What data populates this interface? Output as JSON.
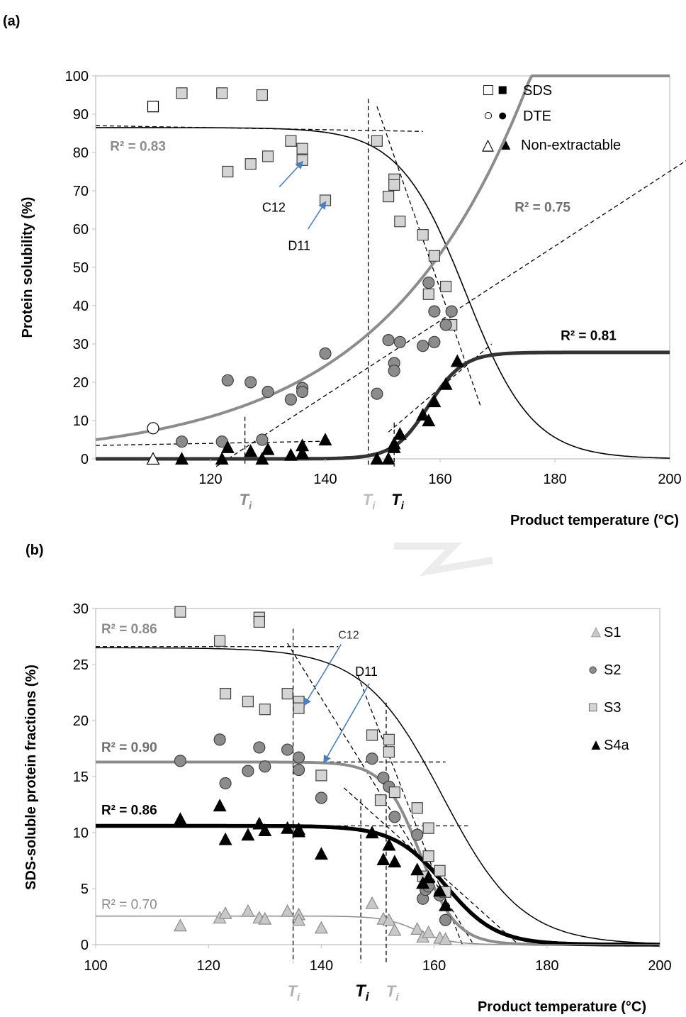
{
  "chart_data": [
    {
      "panel_label": "(a)",
      "type": "scatter",
      "xlabel": "Product temperature (°C)",
      "ylabel": "Protein solubility (%)",
      "xlim": [
        100,
        200
      ],
      "ylim": [
        0,
        100
      ],
      "x_ticks": [
        "120",
        "140",
        "160",
        "180",
        "200"
      ],
      "y_ticks": [
        "0",
        "10",
        "20",
        "30",
        "40",
        "50",
        "60",
        "70",
        "80",
        "90",
        "100"
      ],
      "legend": {
        "placement": "top-right",
        "entries": [
          {
            "symbols": "□ ■",
            "label": "SDS",
            "shape": "square"
          },
          {
            "symbols": "○ ●",
            "label": "DTE",
            "shape": "circle"
          },
          {
            "symbols": "△ ▲",
            "label": "Non-extractable",
            "shape": "triangle"
          }
        ]
      },
      "series": [
        {
          "key": "SDS",
          "shape": "square",
          "fill": "#d4d4d4",
          "open_points": [
            [
              110,
              92
            ]
          ],
          "points": [
            [
              115,
              95.5
            ],
            [
              122,
              95.5
            ],
            [
              129,
              95
            ],
            [
              123,
              75
            ],
            [
              127,
              77
            ],
            [
              130,
              79
            ],
            [
              134,
              83
            ],
            [
              136,
              81
            ],
            [
              136,
              78
            ],
            [
              140,
              67.5
            ],
            [
              149,
              83
            ],
            [
              151,
              68.5
            ],
            [
              152,
              73
            ],
            [
              152,
              71.5
            ],
            [
              153,
              62
            ],
            [
              157,
              58.5
            ],
            [
              158,
              43
            ],
            [
              159,
              53
            ],
            [
              161,
              45
            ],
            [
              162,
              35
            ]
          ]
        },
        {
          "key": "DTE",
          "shape": "circle",
          "fill": "#8c8c8c",
          "open_points": [
            [
              110,
              8
            ]
          ],
          "points": [
            [
              115,
              4.5
            ],
            [
              122,
              4.5
            ],
            [
              123,
              20.5
            ],
            [
              127,
              20
            ],
            [
              129,
              5
            ],
            [
              130,
              17.5
            ],
            [
              134,
              15.5
            ],
            [
              136,
              18.5
            ],
            [
              136,
              17.5
            ],
            [
              140,
              27.5
            ],
            [
              149,
              17
            ],
            [
              151,
              31
            ],
            [
              152,
              25
            ],
            [
              152,
              23
            ],
            [
              153,
              30.5
            ],
            [
              157,
              29.5
            ],
            [
              158,
              46
            ],
            [
              159,
              30.5
            ],
            [
              159,
              38.5
            ],
            [
              161,
              35
            ],
            [
              162,
              38.5
            ]
          ]
        },
        {
          "key": "Non-extractable",
          "shape": "triangle",
          "fill": "#000000",
          "open_points": [
            [
              110,
              0
            ]
          ],
          "points": [
            [
              115,
              0
            ],
            [
              122,
              0
            ],
            [
              123,
              3
            ],
            [
              127,
              2
            ],
            [
              129,
              0
            ],
            [
              130,
              2.5
            ],
            [
              134,
              1
            ],
            [
              136,
              3.5
            ],
            [
              136,
              1.5
            ],
            [
              140,
              5
            ],
            [
              149,
              0
            ],
            [
              151,
              0
            ],
            [
              152,
              3
            ],
            [
              152,
              4
            ],
            [
              153,
              6.5
            ],
            [
              157,
              11.5
            ],
            [
              158,
              10
            ],
            [
              159,
              15
            ],
            [
              161,
              19.5
            ],
            [
              163,
              25.5
            ]
          ]
        }
      ],
      "fits": [
        {
          "model": "sigmoid",
          "top": 86.5,
          "bottom": 0,
          "mid": 164.5,
          "slope": 5.8,
          "color": "#000000",
          "width": 1.6
        },
        {
          "model": "exponential",
          "a": 5.0,
          "b": 0.0395,
          "x0": 100,
          "color": "#8c8c8c",
          "width": 4
        },
        {
          "model": "sigmoid",
          "top": 0,
          "bottom": 27.8,
          "mid": 158,
          "slope": 3,
          "color": "#333333",
          "width": 5
        }
      ],
      "guides": [
        {
          "x1": 100,
          "y1": 87,
          "x2": 157,
          "y2": 85.5
        },
        {
          "x1": 100,
          "y1": 3.5,
          "x2": 140,
          "y2": 4.6
        },
        {
          "x1": 121,
          "y1": -2,
          "x2": 203,
          "y2": 78
        },
        {
          "x1": 149,
          "y1": 92,
          "x2": 167,
          "y2": 14
        },
        {
          "x1": 151,
          "y1": 7,
          "x2": 169,
          "y2": 30
        },
        {
          "x1": 126,
          "y1": 11,
          "x2": 126,
          "y2": -2
        },
        {
          "x1": 147.5,
          "y1": 94,
          "x2": 147.5,
          "y2": -2
        },
        {
          "x1": 152,
          "y1": 9.5,
          "x2": 152,
          "y2": -2
        }
      ],
      "annotations": [
        {
          "text": "R² = 0.83",
          "x": 102.5,
          "y": 80.5,
          "color": "#8c8c8c",
          "weight": "bold",
          "size": 19
        },
        {
          "text": "R² = 0.75",
          "x": 173,
          "y": 64.5,
          "color": "#6f6f6f",
          "weight": "bold",
          "size": 19
        },
        {
          "text": "R² = 0.81",
          "x": 181,
          "y": 31,
          "color": "#000000",
          "weight": "bold",
          "size": 19
        },
        {
          "text": "C12",
          "x": 129,
          "y": 64.5,
          "color": "#000000",
          "weight": "normal",
          "size": 18
        },
        {
          "text": "D11",
          "x": 133.5,
          "y": 54.5,
          "color": "#000000",
          "weight": "normal",
          "size": 18
        }
      ],
      "arrows": [
        {
          "x1": 132,
          "y1": 71,
          "x2": 136,
          "y2": 77.5
        },
        {
          "x1": 137,
          "y1": 60,
          "x2": 140,
          "y2": 67
        }
      ],
      "ti_labels": [
        {
          "base": "T",
          "sub": "i",
          "x": 126,
          "color": "#8c8c8c",
          "size": 22
        },
        {
          "base": "T",
          "sub": "i",
          "x": 147.5,
          "color": "#bdbdbd",
          "size": 22
        },
        {
          "base": "T",
          "sub": "i",
          "x": 152.5,
          "color": "#000000",
          "size": 22
        }
      ]
    },
    {
      "panel_label": "(b)",
      "type": "scatter",
      "xlabel": "Product temperature (°C)",
      "ylabel": "SDS-soluble protein fractions (%)",
      "xlim": [
        100,
        200
      ],
      "ylim": [
        0,
        30
      ],
      "x_ticks": [
        "100",
        "120",
        "140",
        "160",
        "180",
        "200"
      ],
      "y_ticks": [
        "0",
        "5",
        "10",
        "15",
        "20",
        "25",
        "30"
      ],
      "legend": {
        "placement": "top-right",
        "entries": [
          {
            "symbols": "▲",
            "label": "S1",
            "shape": "triangle"
          },
          {
            "symbols": "●",
            "label": "S2",
            "shape": "circle"
          },
          {
            "symbols": "■",
            "label": "S3",
            "shape": "square"
          },
          {
            "symbols": "▲",
            "label": "S4a",
            "shape": "triangle"
          }
        ]
      },
      "series": [
        {
          "key": "S1",
          "shape": "triangle",
          "fill": "#c8c8c8",
          "stroke": "#8c8c8c",
          "points": [
            [
              115,
              1.7
            ],
            [
              122,
              2.4
            ],
            [
              123,
              2.8
            ],
            [
              127,
              3
            ],
            [
              129,
              2.4
            ],
            [
              130,
              2.3
            ],
            [
              134,
              3
            ],
            [
              136,
              2.7
            ],
            [
              136,
              2.2
            ],
            [
              140,
              1.5
            ],
            [
              149,
              3.7
            ],
            [
              151,
              2.3
            ],
            [
              152,
              2.2
            ],
            [
              153,
              1.3
            ],
            [
              157,
              1.4
            ],
            [
              158,
              0.7
            ],
            [
              159,
              1.1
            ],
            [
              161,
              0.6
            ],
            [
              162,
              0.5
            ]
          ]
        },
        {
          "key": "S2",
          "shape": "circle",
          "fill": "#8c8c8c",
          "points": [
            [
              115,
              16.4
            ],
            [
              122,
              18.3
            ],
            [
              123,
              14.4
            ],
            [
              127,
              15.5
            ],
            [
              129,
              17.6
            ],
            [
              130,
              15.9
            ],
            [
              134,
              17.4
            ],
            [
              136,
              16.7
            ],
            [
              136,
              15.6
            ],
            [
              140,
              13.1
            ],
            [
              149,
              16.6
            ],
            [
              151,
              14.9
            ],
            [
              152,
              14.1
            ],
            [
              153,
              11.4
            ],
            [
              157,
              9.8
            ],
            [
              158,
              4.1
            ],
            [
              158.5,
              4.9
            ],
            [
              159,
              5.2
            ],
            [
              161,
              4.4
            ],
            [
              162,
              2.2
            ]
          ]
        },
        {
          "key": "S3",
          "shape": "square",
          "fill": "#d4d4d4",
          "points": [
            [
              115,
              29.7
            ],
            [
              122,
              27.1
            ],
            [
              123,
              22.4
            ],
            [
              127,
              21.7
            ],
            [
              129,
              29.2
            ],
            [
              129,
              28.8
            ],
            [
              130,
              21
            ],
            [
              134,
              22.4
            ],
            [
              136,
              21.7
            ],
            [
              136,
              21.1
            ],
            [
              140,
              15.1
            ],
            [
              149,
              18.7
            ],
            [
              150.5,
              12.9
            ],
            [
              152,
              18.3
            ],
            [
              152,
              17.2
            ],
            [
              153,
              13.6
            ],
            [
              157,
              12.2
            ],
            [
              158,
              6.1
            ],
            [
              159,
              10.4
            ],
            [
              159,
              7.9
            ],
            [
              161,
              6.6
            ],
            [
              162,
              4.7
            ]
          ]
        },
        {
          "key": "S4a",
          "shape": "triangle",
          "fill": "#000000",
          "points": [
            [
              115,
              11.2
            ],
            [
              122,
              12.4
            ],
            [
              123,
              9.4
            ],
            [
              127,
              9.8
            ],
            [
              129,
              10.8
            ],
            [
              130,
              10.2
            ],
            [
              134,
              10.4
            ],
            [
              136,
              10.3
            ],
            [
              136,
              10.1
            ],
            [
              140,
              8.1
            ],
            [
              149,
              10
            ],
            [
              151,
              7.6
            ],
            [
              152,
              8.9
            ],
            [
              153,
              7.4
            ],
            [
              157,
              6.7
            ],
            [
              158,
              5.5
            ],
            [
              159,
              6
            ],
            [
              161,
              4.8
            ],
            [
              162,
              3.5
            ]
          ]
        }
      ],
      "fits": [
        {
          "model": "sigmoid",
          "top": 26.5,
          "bottom": 0,
          "mid": 161.5,
          "slope": 7,
          "color": "#000000",
          "width": 1.5
        },
        {
          "model": "sigmoid",
          "top": 16.3,
          "bottom": 0,
          "mid": 157.5,
          "slope": 3.2,
          "color": "#8c8c8c",
          "width": 4
        },
        {
          "model": "sigmoid",
          "top": 10.6,
          "bottom": 0,
          "mid": 162,
          "slope": 4.5,
          "color": "#000000",
          "width": 5.5
        },
        {
          "model": "sigmoid",
          "top": 2.55,
          "bottom": 0,
          "mid": 157,
          "slope": 3,
          "color": "#8c8c8c",
          "width": 1.5
        }
      ],
      "guides": [
        {
          "x1": 100,
          "y1": 26.6,
          "x2": 143,
          "y2": 26.6
        },
        {
          "x1": 134,
          "y1": 26.9,
          "x2": 167,
          "y2": 0
        },
        {
          "x1": 100,
          "y1": 16.3,
          "x2": 162,
          "y2": 16.3
        },
        {
          "x1": 146.5,
          "y1": 24,
          "x2": 165,
          "y2": 0
        },
        {
          "x1": 100,
          "y1": 10.6,
          "x2": 166,
          "y2": 10.6
        },
        {
          "x1": 144,
          "y1": 14,
          "x2": 175,
          "y2": 0
        },
        {
          "x1": 135,
          "y1": 28.2,
          "x2": 135,
          "y2": -1.6
        },
        {
          "x1": 147,
          "y1": 13,
          "x2": 147,
          "y2": -1.6
        },
        {
          "x1": 151.5,
          "y1": 21.6,
          "x2": 151.5,
          "y2": -1.6
        }
      ],
      "annotations": [
        {
          "text": "R² = 0.86",
          "x": 101,
          "y": 27.8,
          "color": "#8c8c8c",
          "weight": "bold",
          "size": 19
        },
        {
          "text": "R² = 0.90",
          "x": 101,
          "y": 17.2,
          "color": "#6f6f6f",
          "weight": "bold",
          "size": 19
        },
        {
          "text": "R² = 0.86",
          "x": 101,
          "y": 11.6,
          "color": "#000000",
          "weight": "bold",
          "size": 19
        },
        {
          "text": "R² = 0.70",
          "x": 101,
          "y": 3.2,
          "color": "#8c8c8c",
          "weight": "normal",
          "size": 19
        },
        {
          "text": "C12",
          "x": 143,
          "y": 27.3,
          "color": "#333333",
          "weight": "normal",
          "size": 16
        },
        {
          "text": "D11",
          "x": 146,
          "y": 24,
          "color": "#000000",
          "weight": "normal",
          "size": 18
        }
      ],
      "arrows": [
        {
          "x1": 143.5,
          "y1": 26.8,
          "x2": 137,
          "y2": 21.4
        },
        {
          "x1": 148.5,
          "y1": 23.3,
          "x2": 140.5,
          "y2": 16.3
        }
      ],
      "ti_labels": [
        {
          "base": "T",
          "sub": "i",
          "x": 135,
          "color": "#b0b0b0",
          "size": 22
        },
        {
          "base": "T",
          "sub": "i",
          "x": 147,
          "color": "#000000",
          "size": 24
        },
        {
          "base": "T",
          "sub": "i",
          "x": 152.5,
          "color": "#b0b0b0",
          "size": 22
        }
      ]
    }
  ]
}
